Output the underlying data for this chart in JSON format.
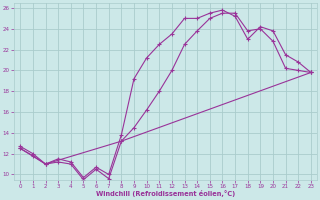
{
  "xlabel": "Windchill (Refroidissement éolien,°C)",
  "background_color": "#cce8e8",
  "grid_color": "#aacccc",
  "line_color": "#993399",
  "xlim": [
    -0.5,
    23.5
  ],
  "ylim": [
    9.5,
    26.5
  ],
  "xticks": [
    0,
    1,
    2,
    3,
    4,
    5,
    6,
    7,
    8,
    9,
    10,
    11,
    12,
    13,
    14,
    15,
    16,
    17,
    18,
    19,
    20,
    21,
    22,
    23
  ],
  "yticks": [
    10,
    12,
    14,
    16,
    18,
    20,
    22,
    24,
    26
  ],
  "line1_x": [
    0,
    1,
    2,
    3,
    4,
    5,
    6,
    7,
    8,
    9,
    10,
    11,
    12,
    13,
    14,
    15,
    16,
    17,
    18,
    19,
    20,
    21,
    22,
    23
  ],
  "line1_y": [
    12.7,
    12.0,
    11.0,
    11.5,
    11.2,
    9.7,
    10.7,
    10.0,
    13.8,
    19.2,
    21.2,
    22.5,
    23.5,
    25.0,
    25.0,
    25.5,
    25.8,
    25.2,
    23.0,
    24.2,
    23.8,
    21.5,
    20.8,
    19.8
  ],
  "line2_x": [
    0,
    1,
    2,
    3,
    4,
    5,
    6,
    7,
    8,
    9,
    10,
    11,
    12,
    13,
    14,
    15,
    16,
    17,
    18,
    19,
    20,
    21,
    22,
    23
  ],
  "line2_y": [
    12.5,
    11.8,
    11.0,
    11.2,
    11.0,
    9.5,
    10.5,
    9.6,
    13.2,
    14.5,
    16.2,
    18.0,
    20.0,
    22.5,
    23.8,
    25.0,
    25.5,
    25.5,
    23.8,
    24.0,
    22.8,
    20.2,
    20.0,
    19.8
  ],
  "line3_x": [
    0,
    2,
    8,
    23
  ],
  "line3_y": [
    12.5,
    11.0,
    13.2,
    19.8
  ]
}
